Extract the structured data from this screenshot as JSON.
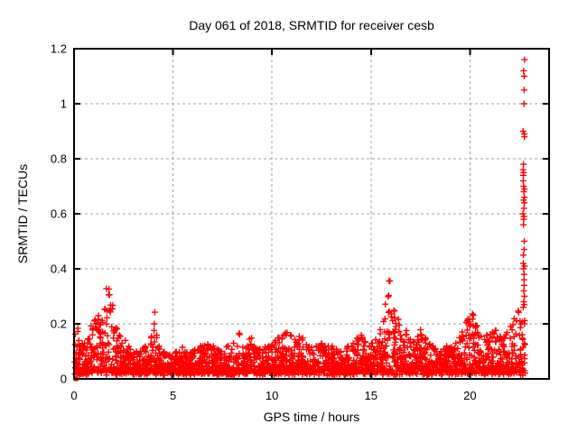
{
  "chart_data": {
    "type": "scatter",
    "title": "Day 061 of 2018, SRMTID for receiver cesb",
    "xlabel": "GPS time / hours",
    "ylabel": "SRMTID / TECUs",
    "xlim": [
      0,
      24
    ],
    "ylim": [
      0,
      1.2
    ],
    "xticks": [
      0,
      5,
      10,
      15,
      20
    ],
    "xtick_labels": [
      "0",
      "5",
      "10",
      "15",
      "20"
    ],
    "yticks": [
      0,
      0.2,
      0.4,
      0.6,
      0.8,
      1,
      1.2
    ],
    "ytick_labels": [
      "0",
      "0.2",
      "0.4",
      "0.6",
      "0.8",
      "1",
      "1.2"
    ],
    "grid": true,
    "legend_position": "none",
    "marker": "plus",
    "marker_color": "#ff0000",
    "grid_color": "#a0a0a0",
    "border_color": "#000000",
    "background": "#ffffff",
    "envelope_bins": {
      "comment": "dense low-level scatter band; bin centers start at x_start, spaced x_step hours; hi = approx max SRMTID in bin (TECUs), typical floor lo",
      "x_start": 0.1,
      "x_step": 0.2,
      "lo": 0.012,
      "points_per_bin": 22,
      "hi": [
        0.19,
        0.14,
        0.13,
        0.15,
        0.2,
        0.22,
        0.23,
        0.27,
        0.33,
        0.28,
        0.19,
        0.16,
        0.14,
        0.12,
        0.11,
        0.1,
        0.1,
        0.12,
        0.1,
        0.16,
        0.25,
        0.12,
        0.1,
        0.09,
        0.09,
        0.1,
        0.1,
        0.12,
        0.1,
        0.1,
        0.11,
        0.12,
        0.12,
        0.13,
        0.12,
        0.12,
        0.11,
        0.1,
        0.12,
        0.11,
        0.13,
        0.17,
        0.12,
        0.12,
        0.15,
        0.12,
        0.11,
        0.11,
        0.12,
        0.12,
        0.14,
        0.15,
        0.16,
        0.17,
        0.16,
        0.15,
        0.16,
        0.15,
        0.13,
        0.12,
        0.11,
        0.12,
        0.13,
        0.12,
        0.12,
        0.12,
        0.11,
        0.1,
        0.11,
        0.12,
        0.13,
        0.15,
        0.16,
        0.14,
        0.12,
        0.13,
        0.15,
        0.18,
        0.28,
        0.37,
        0.25,
        0.22,
        0.2,
        0.18,
        0.15,
        0.14,
        0.16,
        0.18,
        0.15,
        0.13,
        0.12,
        0.11,
        0.1,
        0.11,
        0.12,
        0.12,
        0.13,
        0.15,
        0.18,
        0.22,
        0.24,
        0.2,
        0.16,
        0.15,
        0.16,
        0.17,
        0.18,
        0.16,
        0.15,
        0.17,
        0.2,
        0.22,
        0.25,
        0.22
      ]
    },
    "spike": {
      "comment": "sparse vertical column of outliers near end of day",
      "x": 22.72,
      "values": [
        1.16,
        1.12,
        1.1,
        1.05,
        1.0,
        0.9,
        0.89,
        0.88,
        0.78,
        0.76,
        0.75,
        0.74,
        0.72,
        0.7,
        0.69,
        0.68,
        0.66,
        0.65,
        0.64,
        0.62,
        0.6,
        0.59,
        0.58,
        0.56,
        0.5,
        0.47,
        0.45,
        0.42,
        0.41,
        0.4,
        0.38,
        0.36,
        0.34,
        0.32,
        0.3,
        0.28,
        0.27,
        0.26
      ]
    },
    "origin_point": {
      "x": 0.1,
      "y": 0.0,
      "marker": "filled-square"
    }
  }
}
